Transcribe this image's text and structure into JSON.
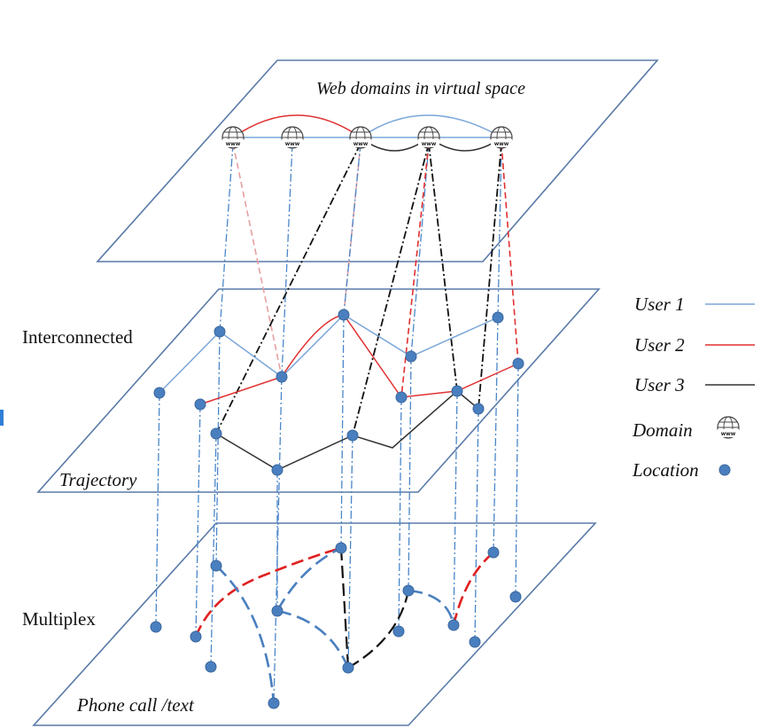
{
  "top_plane": {
    "title": "Web domains in virtual space"
  },
  "middle_plane": {
    "side_label": "Interconnected",
    "inner_label": "Trajectory"
  },
  "bottom_plane": {
    "side_label": "Multiplex",
    "inner_label": "Phone call /text"
  },
  "legend": {
    "user1": "User 1",
    "user2": "User 2",
    "user3": "User 3",
    "domain": "Domain",
    "location": "Location"
  },
  "domain_icon_text": "www",
  "colors": {
    "user1": "#7aa6d8",
    "user2": "#e03030",
    "user3": "#333333",
    "location": "#4a7fbf",
    "plane_border": "#5a7aa8"
  }
}
